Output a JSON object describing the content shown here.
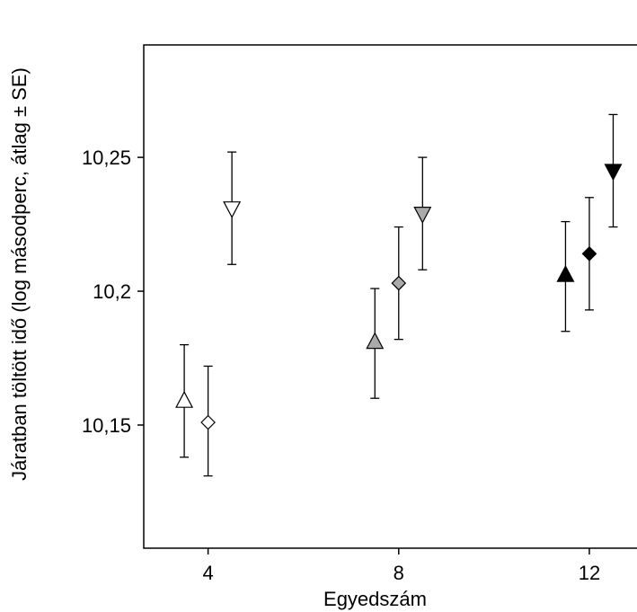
{
  "chart_data": {
    "type": "scatter",
    "title": "",
    "xlabel": "Egyedszám",
    "ylabel": "Járatban töltött idő (log másodperc, átlag ± SE)",
    "x_ticks": [
      4,
      8,
      12
    ],
    "x_tick_labels": [
      "4",
      "8",
      "12"
    ],
    "y_ticks": [
      10.15,
      10.2,
      10.25
    ],
    "y_tick_labels": [
      "10,15",
      "10,2",
      "10,25"
    ],
    "xlim": [
      2.65,
      13
    ],
    "ylim": [
      10.104,
      10.292
    ],
    "grid": false,
    "legend": "none",
    "series": [
      {
        "marker": "triangle-up",
        "fill": "#ffffff",
        "points": [
          {
            "x": 3.5,
            "y": 10.159,
            "lo": 10.138,
            "hi": 10.18
          }
        ]
      },
      {
        "marker": "diamond",
        "fill": "#ffffff",
        "points": [
          {
            "x": 4.0,
            "y": 10.151,
            "lo": 10.131,
            "hi": 10.172
          }
        ]
      },
      {
        "marker": "triangle-down",
        "fill": "#ffffff",
        "points": [
          {
            "x": 4.5,
            "y": 10.231,
            "lo": 10.21,
            "hi": 10.252
          }
        ]
      },
      {
        "marker": "triangle-up",
        "fill": "#aaaaaa",
        "points": [
          {
            "x": 7.5,
            "y": 10.181,
            "lo": 10.16,
            "hi": 10.201
          }
        ]
      },
      {
        "marker": "diamond",
        "fill": "#aaaaaa",
        "points": [
          {
            "x": 8.0,
            "y": 10.203,
            "lo": 10.182,
            "hi": 10.224
          }
        ]
      },
      {
        "marker": "triangle-down",
        "fill": "#aaaaaa",
        "points": [
          {
            "x": 8.5,
            "y": 10.229,
            "lo": 10.208,
            "hi": 10.25
          }
        ]
      },
      {
        "marker": "triangle-up",
        "fill": "#000000",
        "points": [
          {
            "x": 11.5,
            "y": 10.206,
            "lo": 10.185,
            "hi": 10.226
          }
        ]
      },
      {
        "marker": "diamond",
        "fill": "#000000",
        "points": [
          {
            "x": 12.0,
            "y": 10.214,
            "lo": 10.193,
            "hi": 10.235
          }
        ]
      },
      {
        "marker": "triangle-down",
        "fill": "#000000",
        "points": [
          {
            "x": 12.5,
            "y": 10.245,
            "lo": 10.224,
            "hi": 10.266
          }
        ]
      }
    ]
  }
}
